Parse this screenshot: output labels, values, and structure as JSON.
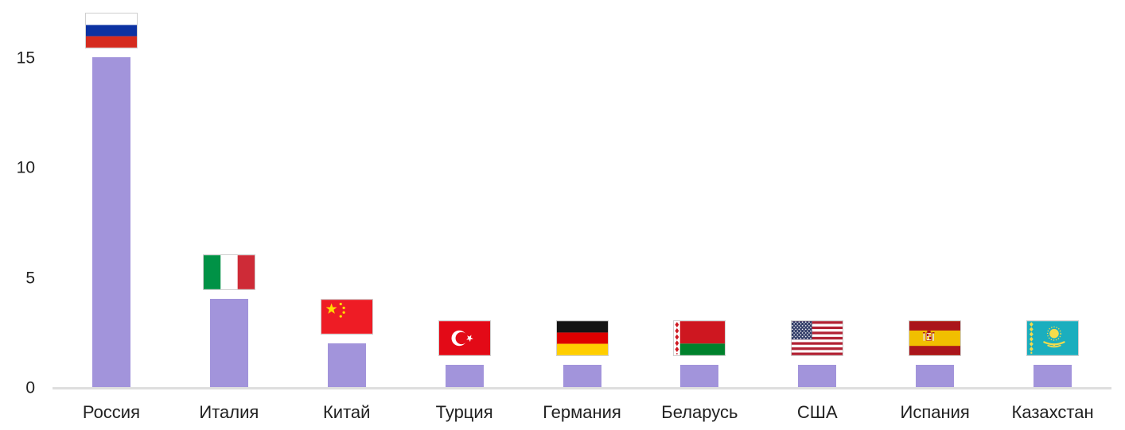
{
  "chart_data": {
    "type": "bar",
    "title": "",
    "xlabel": "",
    "ylabel": "",
    "categories": [
      "Россия",
      "Италия",
      "Китай",
      "Турция",
      "Германия",
      "Беларусь",
      "США",
      "Испания",
      "Казахстан"
    ],
    "values": [
      15,
      4,
      2,
      1,
      1,
      1,
      1,
      1,
      1
    ],
    "flags": [
      "russia",
      "italy",
      "china",
      "turkey",
      "germany",
      "belarus",
      "usa",
      "spain",
      "kazakhstan"
    ],
    "flag_icon_names": [
      "russia-flag-icon",
      "italy-flag-icon",
      "china-flag-icon",
      "turkey-flag-icon",
      "germany-flag-icon",
      "belarus-flag-icon",
      "usa-flag-icon",
      "spain-flag-icon",
      "kazakhstan-flag-icon"
    ],
    "yticks": [
      0,
      5,
      10,
      15
    ],
    "ylim": [
      0,
      17.5
    ],
    "grid": false,
    "legend": "none",
    "bar_color": "#A294DB",
    "axis_line_color": "#DEDEDE",
    "label_color": "#212121"
  }
}
